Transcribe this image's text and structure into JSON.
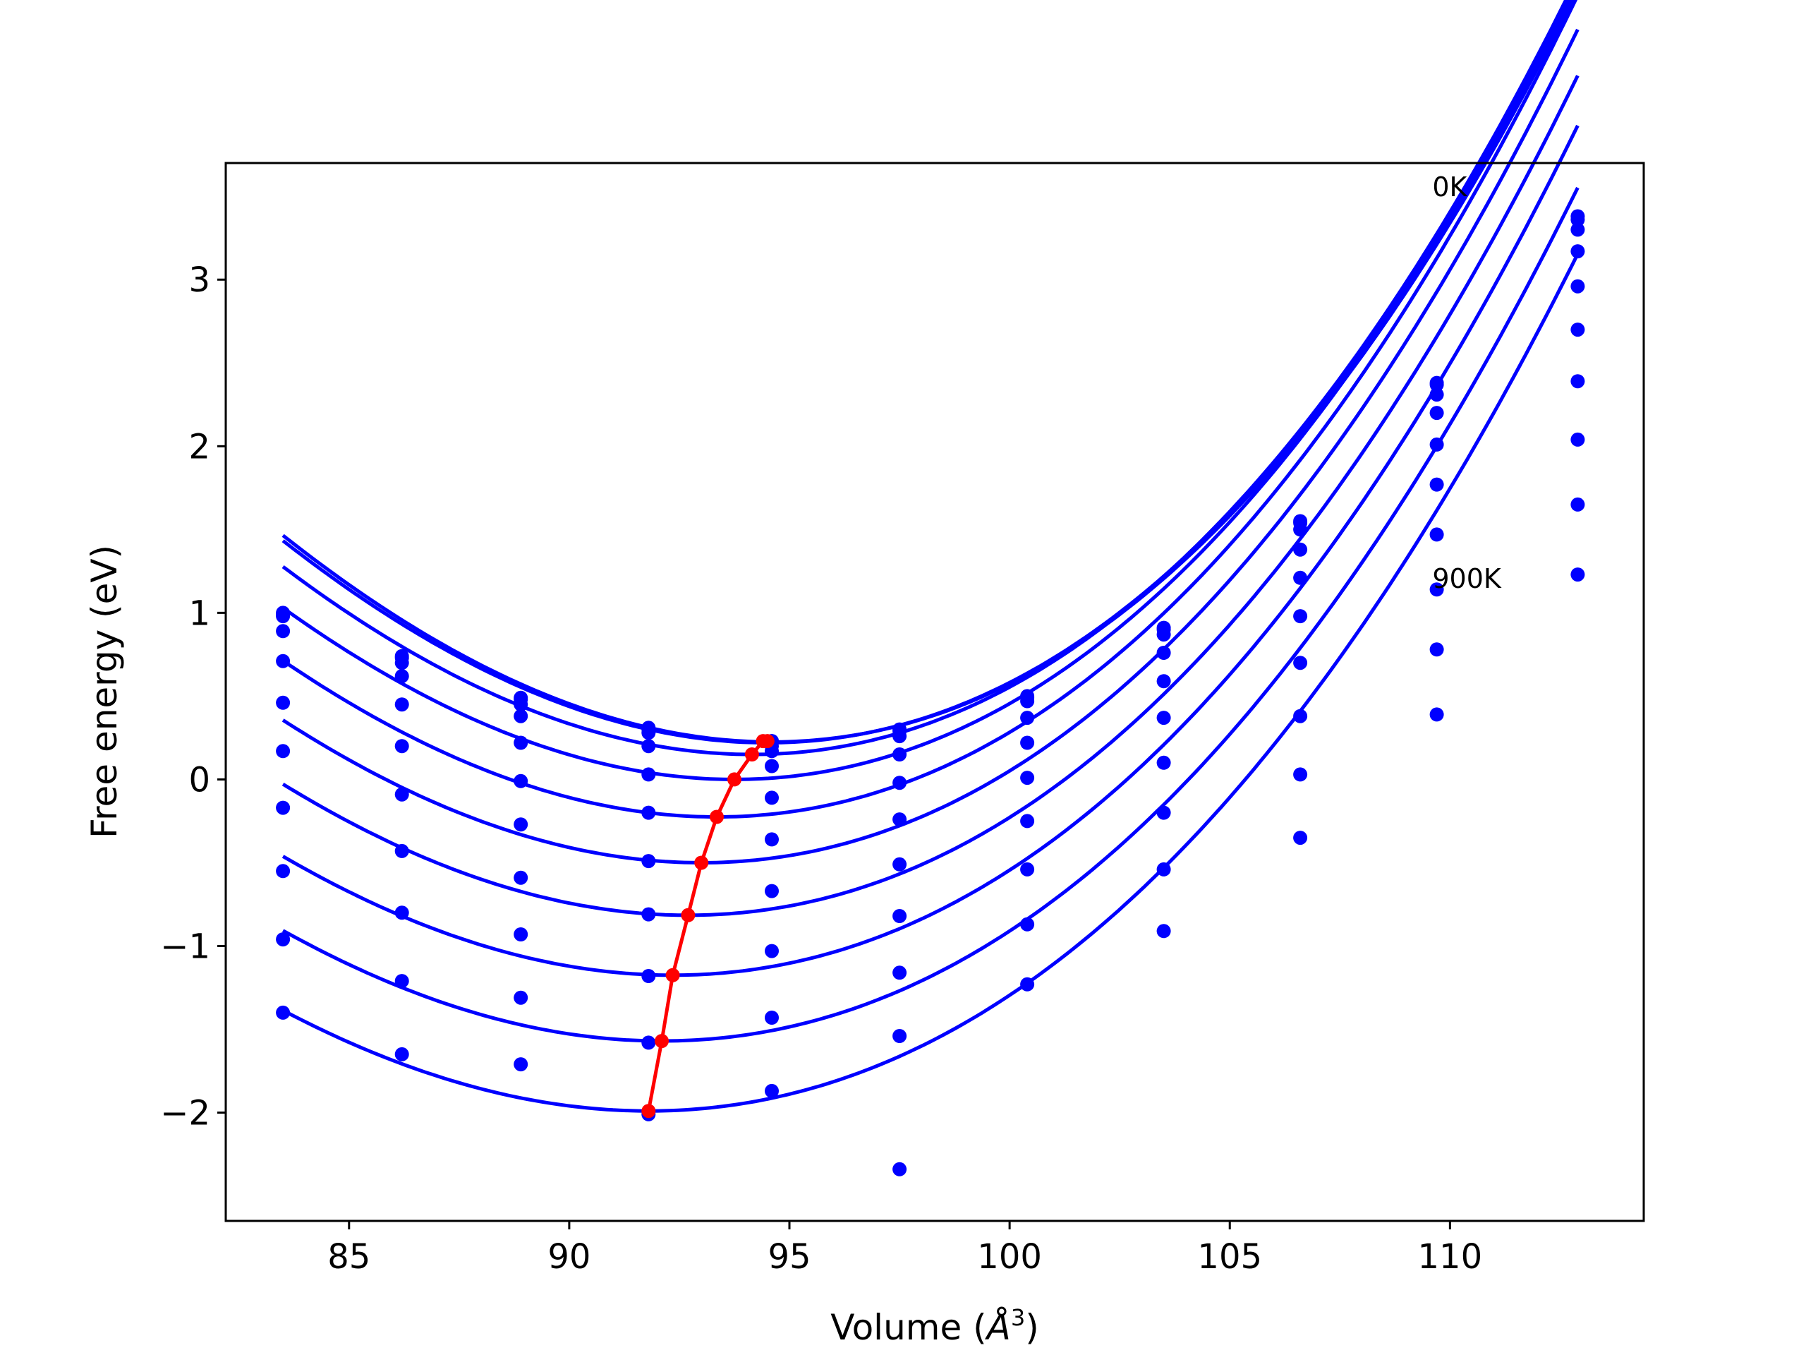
{
  "chart_data": {
    "type": "line",
    "title": "",
    "xlabel": "Volume (Å³)",
    "xlabel_main": "Volume (",
    "xlabel_symbol": "Å",
    "xlabel_power": "3",
    "xlabel_close": ")",
    "ylabel": "Free energy (eV)",
    "xlim": [
      82.2,
      114.4
    ],
    "ylim": [
      -2.65,
      3.7
    ],
    "xticks": [
      85,
      90,
      95,
      100,
      105,
      110
    ],
    "yticks": [
      -2,
      -1,
      0,
      1,
      2,
      3
    ],
    "xtick_labels": [
      "85",
      "90",
      "95",
      "100",
      "105",
      "110"
    ],
    "ytick_labels": [
      "−2",
      "−1",
      "0",
      "1",
      "2",
      "3"
    ],
    "grid": false,
    "legend": "none",
    "curve_color": "#0000ff",
    "minima_color": "#ff0000",
    "annotations": [
      {
        "text": "0K",
        "x": 109.6,
        "y": 3.5
      },
      {
        "text": "900K",
        "x": 109.6,
        "y": 1.15
      }
    ],
    "volumes": [
      83.5,
      86.2,
      88.9,
      91.8,
      94.6,
      97.5,
      100.4,
      103.5,
      106.6,
      109.7,
      112.9
    ],
    "series": [
      {
        "values": [
          0.99,
          0.74,
          0.49,
          0.31,
          0.23,
          0.3,
          0.5,
          0.91,
          1.55,
          2.38,
          3.38
        ]
      },
      {
        "values": [
          1.0,
          0.73,
          0.48,
          0.3,
          0.23,
          0.29,
          0.49,
          0.9,
          1.54,
          2.37,
          3.36
        ]
      },
      {
        "values": [
          0.98,
          0.7,
          0.45,
          0.28,
          0.2,
          0.26,
          0.47,
          0.87,
          1.5,
          2.31,
          3.3
        ]
      },
      {
        "values": [
          0.89,
          0.62,
          0.38,
          0.2,
          0.17,
          0.15,
          0.37,
          0.76,
          1.38,
          2.2,
          3.17
        ]
      },
      {
        "values": [
          0.71,
          0.45,
          0.22,
          0.03,
          0.08,
          -0.02,
          0.22,
          0.59,
          1.21,
          2.01,
          2.96
        ]
      },
      {
        "values": [
          0.46,
          0.2,
          -0.01,
          -0.2,
          -0.11,
          -0.24,
          0.01,
          0.37,
          0.98,
          1.77,
          2.7
        ]
      },
      {
        "values": [
          0.17,
          -0.09,
          -0.27,
          -0.49,
          -0.36,
          -0.51,
          -0.25,
          0.1,
          0.7,
          1.47,
          2.39
        ]
      },
      {
        "values": [
          -0.17,
          -0.43,
          -0.59,
          -0.81,
          -0.67,
          -0.82,
          -0.54,
          -0.2,
          0.38,
          1.14,
          2.04
        ]
      },
      {
        "values": [
          -0.55,
          -0.8,
          -0.93,
          -1.18,
          -1.03,
          -1.16,
          -0.87,
          -0.54,
          0.03,
          0.78,
          1.65
        ]
      },
      {
        "values": [
          -0.96,
          -1.21,
          -1.31,
          -1.58,
          -1.43,
          -1.54,
          -1.23,
          -0.91,
          -0.35,
          0.39,
          1.23
        ]
      },
      {
        "values": [
          -1.4,
          -1.65,
          -1.71,
          -2.01,
          -1.87,
          -2.34,
          null,
          null,
          null,
          null,
          null
        ]
      }
    ],
    "fits": [
      {
        "min_v": 94.6,
        "min_e": 0.225,
        "c2": 0.01135,
        "c3": 0.000116
      },
      {
        "min_v": 94.5,
        "min_e": 0.22,
        "c2": 0.0113,
        "c3": 0.000116
      },
      {
        "min_v": 94.15,
        "min_e": 0.15,
        "c2": 0.01115,
        "c3": 0.000114
      },
      {
        "min_v": 93.75,
        "min_e": 0.0,
        "c2": 0.01095,
        "c3": 0.000112
      },
      {
        "min_v": 93.35,
        "min_e": -0.225,
        "c2": 0.01075,
        "c3": 0.00011
      },
      {
        "min_v": 93.0,
        "min_e": -0.5,
        "c2": 0.0105,
        "c3": 0.000107
      },
      {
        "min_v": 92.7,
        "min_e": -0.815,
        "c2": 0.01025,
        "c3": 0.000104
      },
      {
        "min_v": 92.35,
        "min_e": -1.175,
        "c2": 0.01,
        "c3": 0.000101
      },
      {
        "min_v": 92.1,
        "min_e": -1.57,
        "c2": 0.0098,
        "c3": 9.8e-05
      },
      {
        "min_v": 91.8,
        "min_e": -1.99,
        "c2": 0.00955,
        "c3": 9.5e-05
      }
    ],
    "minima_path": {
      "x": [
        94.5,
        94.4,
        94.15,
        93.75,
        93.35,
        93.0,
        92.7,
        92.35,
        92.1,
        91.8
      ],
      "y": [
        0.23,
        0.23,
        0.15,
        0.0,
        -0.225,
        -0.5,
        -0.815,
        -1.175,
        -1.57,
        -1.99
      ]
    }
  }
}
